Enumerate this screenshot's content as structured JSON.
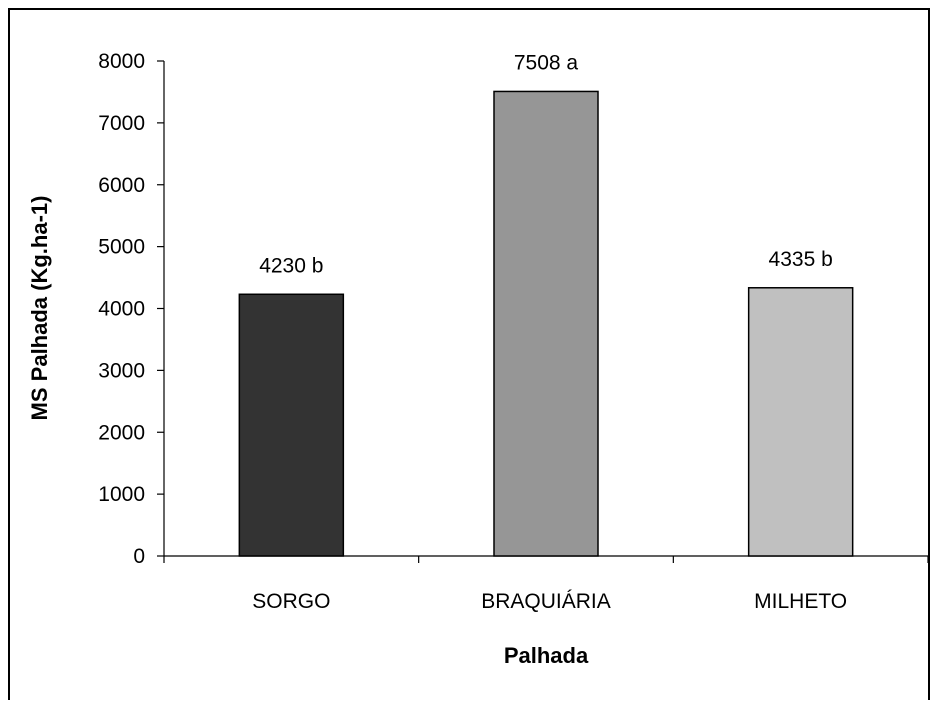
{
  "chart_data": {
    "type": "bar",
    "categories": [
      "SORGO",
      "BRAQUIÁRIA",
      "MILHETO"
    ],
    "values": [
      4230,
      7508,
      4335
    ],
    "data_labels": [
      "4230 b",
      "7508 a",
      "4335 b"
    ],
    "colors": [
      "#333333",
      "#969696",
      "#c0c0c0"
    ],
    "title": "",
    "xlabel": "Palhada",
    "ylabel": "MS Palhada (Kg.ha-1)",
    "ylim": [
      0,
      8000
    ],
    "yticks": [
      0,
      1000,
      2000,
      3000,
      4000,
      5000,
      6000,
      7000,
      8000
    ],
    "grid": false,
    "legend": "none"
  }
}
